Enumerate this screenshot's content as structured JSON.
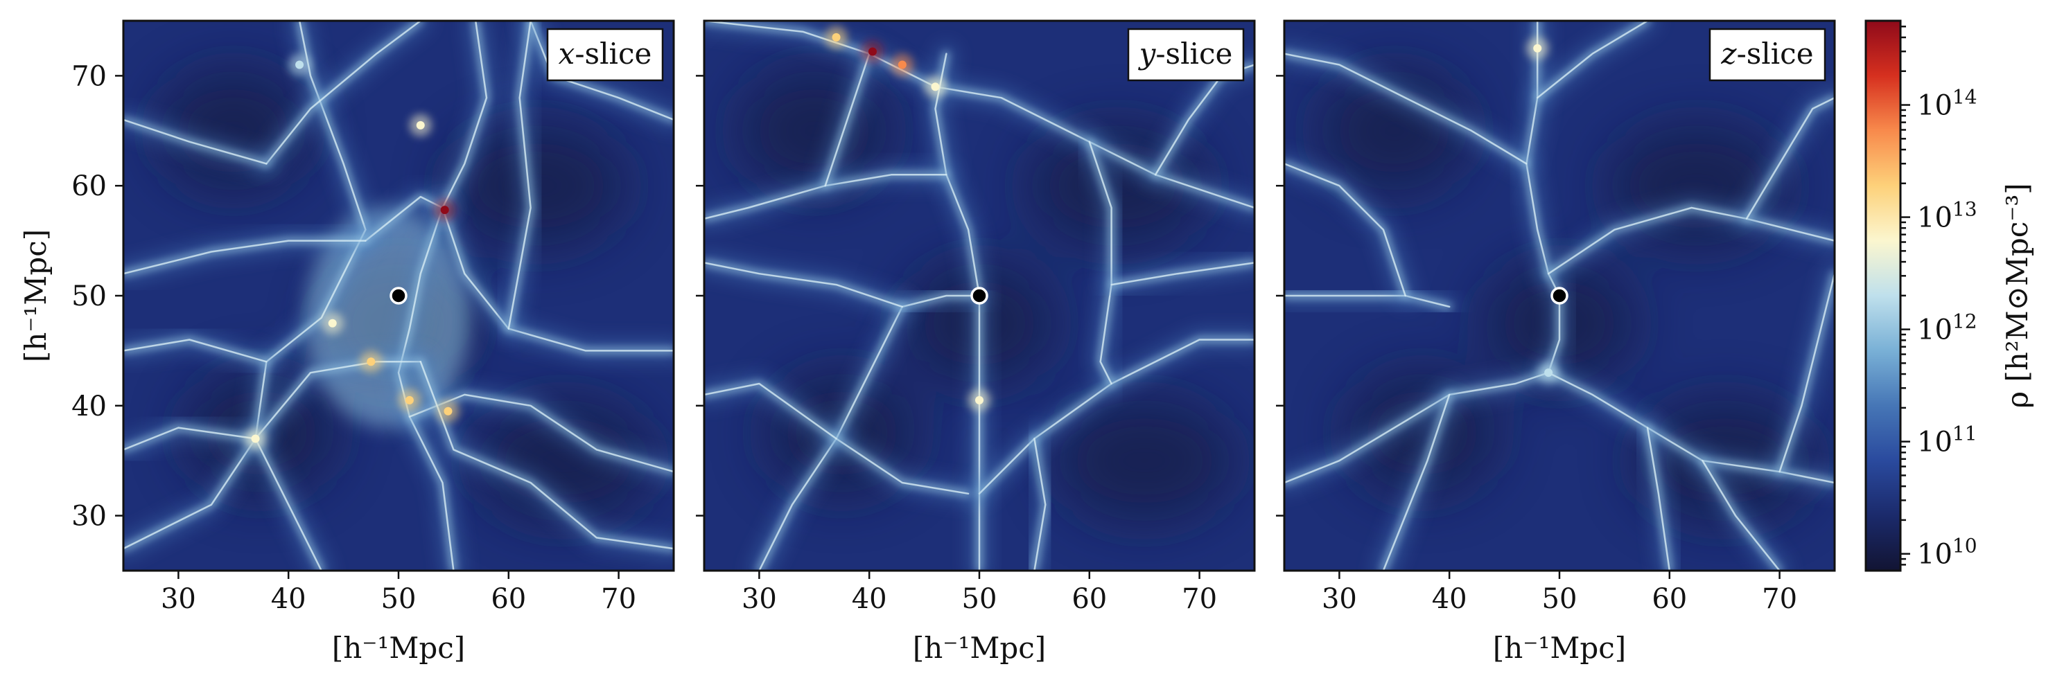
{
  "chart_data": {
    "type": "heatmap",
    "description_panels": [
      "x-slice",
      "y-slice",
      "z-slice"
    ],
    "panels": [
      {
        "label_var": "x",
        "label_rest": "-slice",
        "xlim": [
          25,
          75
        ],
        "ylim": [
          25,
          75
        ],
        "marker": {
          "x": 50,
          "y": 50
        },
        "filaments": [
          [
            [
              41,
              75
            ],
            [
              42,
              70
            ],
            [
              45,
              62
            ],
            [
              47,
              56
            ],
            [
              43,
              48
            ],
            [
              38,
              44
            ],
            [
              37,
              37
            ],
            [
              33,
              31
            ],
            [
              25,
              27
            ]
          ],
          [
            [
              54,
              58
            ],
            [
              52,
              52
            ],
            [
              51,
              47
            ],
            [
              50,
              43
            ],
            [
              51,
              39
            ],
            [
              54,
              33
            ],
            [
              55,
              25
            ]
          ],
          [
            [
              54,
              58
            ],
            [
              56,
              52
            ],
            [
              60,
              47
            ],
            [
              67,
              45
            ],
            [
              75,
              45
            ]
          ],
          [
            [
              47,
              55
            ],
            [
              52,
              59
            ],
            [
              54,
              58
            ]
          ],
          [
            [
              37,
              37
            ],
            [
              42,
              43
            ],
            [
              48,
              44
            ],
            [
              52,
              44
            ]
          ],
          [
            [
              37,
              37
            ],
            [
              40,
              31
            ],
            [
              43,
              25
            ]
          ],
          [
            [
              51,
              39
            ],
            [
              56,
              41
            ],
            [
              62,
              40
            ],
            [
              68,
              36
            ],
            [
              75,
              34
            ]
          ],
          [
            [
              25,
              36
            ],
            [
              30,
              38
            ],
            [
              37,
              37
            ]
          ],
          [
            [
              38,
              62
            ],
            [
              42,
              67
            ],
            [
              48,
              72
            ],
            [
              52,
              75
            ]
          ],
          [
            [
              25,
              45
            ],
            [
              31,
              46
            ],
            [
              38,
              44
            ]
          ],
          [
            [
              57,
              75
            ],
            [
              58,
              68
            ],
            [
              56,
              62
            ],
            [
              54,
              58
            ]
          ],
          [
            [
              25,
              52
            ],
            [
              33,
              54
            ],
            [
              40,
              55
            ],
            [
              47,
              55
            ]
          ],
          [
            [
              62,
              75
            ],
            [
              64,
              70
            ],
            [
              70,
              68
            ],
            [
              75,
              66
            ]
          ],
          [
            [
              25,
              66
            ],
            [
              31,
              64
            ],
            [
              38,
              62
            ]
          ],
          [
            [
              60,
              47
            ],
            [
              62,
              58
            ],
            [
              61,
              68
            ],
            [
              62,
              75
            ]
          ],
          [
            [
              52,
              44
            ],
            [
              55,
              36
            ],
            [
              62,
              33
            ],
            [
              68,
              28
            ],
            [
              75,
              27
            ]
          ]
        ],
        "hot_spots": [
          {
            "x": 54.2,
            "y": 57.8,
            "v": 0.95
          },
          {
            "x": 51,
            "y": 40.5,
            "v": 0.72
          },
          {
            "x": 54.5,
            "y": 39.5,
            "v": 0.7
          },
          {
            "x": 47.5,
            "y": 44,
            "v": 0.65
          },
          {
            "x": 37,
            "y": 37,
            "v": 0.6
          },
          {
            "x": 52,
            "y": 65.5,
            "v": 0.55
          },
          {
            "x": 41,
            "y": 71,
            "v": 0.5
          },
          {
            "x": 44,
            "y": 47.5,
            "v": 0.55
          }
        ],
        "shock_blob": {
          "cx": 49,
          "cy": 48,
          "rx": 7.5,
          "ry": 10
        }
      },
      {
        "label_var": "y",
        "label_rest": "-slice",
        "xlim": [
          25,
          75
        ],
        "ylim": [
          25,
          75
        ],
        "marker": {
          "x": 50,
          "y": 50
        },
        "filaments": [
          [
            [
              25,
              75
            ],
            [
              34,
              74
            ],
            [
              40,
              72
            ],
            [
              46,
              69
            ],
            [
              52,
              68
            ],
            [
              60,
              64
            ],
            [
              66,
              61
            ],
            [
              75,
              58
            ]
          ],
          [
            [
              50,
              25
            ],
            [
              50,
              32
            ],
            [
              50,
              38
            ],
            [
              50,
              44
            ],
            [
              50,
              50
            ],
            [
              49,
              56
            ],
            [
              47,
              61
            ],
            [
              46,
              67
            ],
            [
              47,
              72
            ]
          ],
          [
            [
              30,
              25
            ],
            [
              33,
              31
            ],
            [
              37,
              37
            ],
            [
              40,
              43
            ],
            [
              43,
              49
            ]
          ],
          [
            [
              43,
              49
            ],
            [
              47,
              50
            ],
            [
              50,
              50
            ]
          ],
          [
            [
              25,
              53
            ],
            [
              30,
              52
            ],
            [
              37,
              51
            ],
            [
              43,
              49
            ]
          ],
          [
            [
              50,
              32
            ],
            [
              55,
              37
            ],
            [
              62,
              42
            ],
            [
              70,
              46
            ],
            [
              75,
              46
            ]
          ],
          [
            [
              37,
              37
            ],
            [
              43,
              33
            ],
            [
              49,
              32
            ]
          ],
          [
            [
              47,
              61
            ],
            [
              42,
              61
            ],
            [
              36,
              60
            ],
            [
              29,
              58
            ],
            [
              25,
              57
            ]
          ],
          [
            [
              60,
              64
            ],
            [
              62,
              58
            ],
            [
              62,
              51
            ],
            [
              61,
              44
            ],
            [
              62,
              42
            ]
          ],
          [
            [
              62,
              51
            ],
            [
              68,
              52
            ],
            [
              75,
              53
            ]
          ],
          [
            [
              40,
              72
            ],
            [
              38,
              66
            ],
            [
              36,
              60
            ]
          ],
          [
            [
              66,
              61
            ],
            [
              69,
              66
            ],
            [
              72,
              70
            ],
            [
              75,
              71
            ]
          ],
          [
            [
              55,
              25
            ],
            [
              56,
              31
            ],
            [
              55,
              37
            ]
          ],
          [
            [
              25,
              41
            ],
            [
              30,
              42
            ],
            [
              37,
              37
            ]
          ]
        ],
        "hot_spots": [
          {
            "x": 40.3,
            "y": 72.2,
            "v": 0.97
          },
          {
            "x": 43,
            "y": 71,
            "v": 0.8
          },
          {
            "x": 37,
            "y": 73.5,
            "v": 0.7
          },
          {
            "x": 50,
            "y": 40.5,
            "v": 0.6
          },
          {
            "x": 46,
            "y": 69,
            "v": 0.55
          }
        ]
      },
      {
        "label_var": "z",
        "label_rest": "-slice",
        "xlim": [
          25,
          75
        ],
        "ylim": [
          25,
          75
        ],
        "marker": {
          "x": 50,
          "y": 50
        },
        "filaments": [
          [
            [
              48,
              75
            ],
            [
              48,
              68
            ],
            [
              47,
              62
            ],
            [
              48,
              56
            ],
            [
              49,
              52
            ],
            [
              50,
              50
            ],
            [
              50,
              46
            ],
            [
              49,
              43
            ]
          ],
          [
            [
              49,
              43
            ],
            [
              46,
              42
            ],
            [
              40,
              41
            ],
            [
              35,
              38
            ],
            [
              30,
              35
            ],
            [
              25,
              33
            ]
          ],
          [
            [
              49,
              43
            ],
            [
              53,
              41
            ],
            [
              58,
              38
            ],
            [
              63,
              35
            ],
            [
              70,
              34
            ],
            [
              75,
              33
            ]
          ],
          [
            [
              25,
              50
            ],
            [
              30,
              50
            ],
            [
              36,
              50
            ],
            [
              40,
              49
            ]
          ],
          [
            [
              49,
              52
            ],
            [
              55,
              56
            ],
            [
              62,
              58
            ],
            [
              67,
              57
            ],
            [
              71,
              56
            ],
            [
              75,
              55
            ]
          ],
          [
            [
              67,
              57
            ],
            [
              70,
              62
            ],
            [
              73,
              67
            ],
            [
              75,
              68
            ]
          ],
          [
            [
              47,
              62
            ],
            [
              42,
              65
            ],
            [
              36,
              68
            ],
            [
              30,
              71
            ],
            [
              25,
              72
            ]
          ],
          [
            [
              40,
              41
            ],
            [
              38,
              35
            ],
            [
              36,
              30
            ],
            [
              34,
              25
            ]
          ],
          [
            [
              58,
              38
            ],
            [
              59,
              32
            ],
            [
              60,
              25
            ]
          ],
          [
            [
              48,
              68
            ],
            [
              53,
              72
            ],
            [
              58,
              75
            ]
          ],
          [
            [
              70,
              34
            ],
            [
              72,
              40
            ],
            [
              74,
              48
            ],
            [
              75,
              52
            ]
          ],
          [
            [
              36,
              50
            ],
            [
              34,
              56
            ],
            [
              30,
              60
            ],
            [
              25,
              62
            ]
          ],
          [
            [
              63,
              35
            ],
            [
              66,
              30
            ],
            [
              70,
              25
            ]
          ]
        ],
        "hot_spots": [
          {
            "x": 48,
            "y": 72.5,
            "v": 0.55
          },
          {
            "x": 49,
            "y": 43,
            "v": 0.45
          }
        ]
      }
    ],
    "xticks": [
      30,
      40,
      50,
      60,
      70
    ],
    "yticks": [
      30,
      40,
      50,
      60,
      70
    ],
    "xlabel": "[h⁻¹Mpc]",
    "ylabel": "[h⁻¹Mpc]",
    "colorbar": {
      "scale": "log",
      "range": [
        9.85,
        14.75
      ],
      "ticks": [
        {
          "exp": 10,
          "label": "10",
          "sup": "10"
        },
        {
          "exp": 11,
          "label": "10",
          "sup": "11"
        },
        {
          "exp": 12,
          "label": "10",
          "sup": "12"
        },
        {
          "exp": 13,
          "label": "10",
          "sup": "13"
        },
        {
          "exp": 14,
          "label": "10",
          "sup": "14"
        }
      ],
      "label": "ρ  [h²M⊙Mpc⁻³]",
      "colormap": "RdYlBu_r",
      "colors": [
        "#121433",
        "#1b2a6b",
        "#2a4a9e",
        "#4676b6",
        "#79b0d6",
        "#bfe0ec",
        "#fbf6cf",
        "#fdd17a",
        "#f88a4c",
        "#d6301f",
        "#8f0a1a"
      ]
    },
    "background_color": "#1d2f78"
  }
}
